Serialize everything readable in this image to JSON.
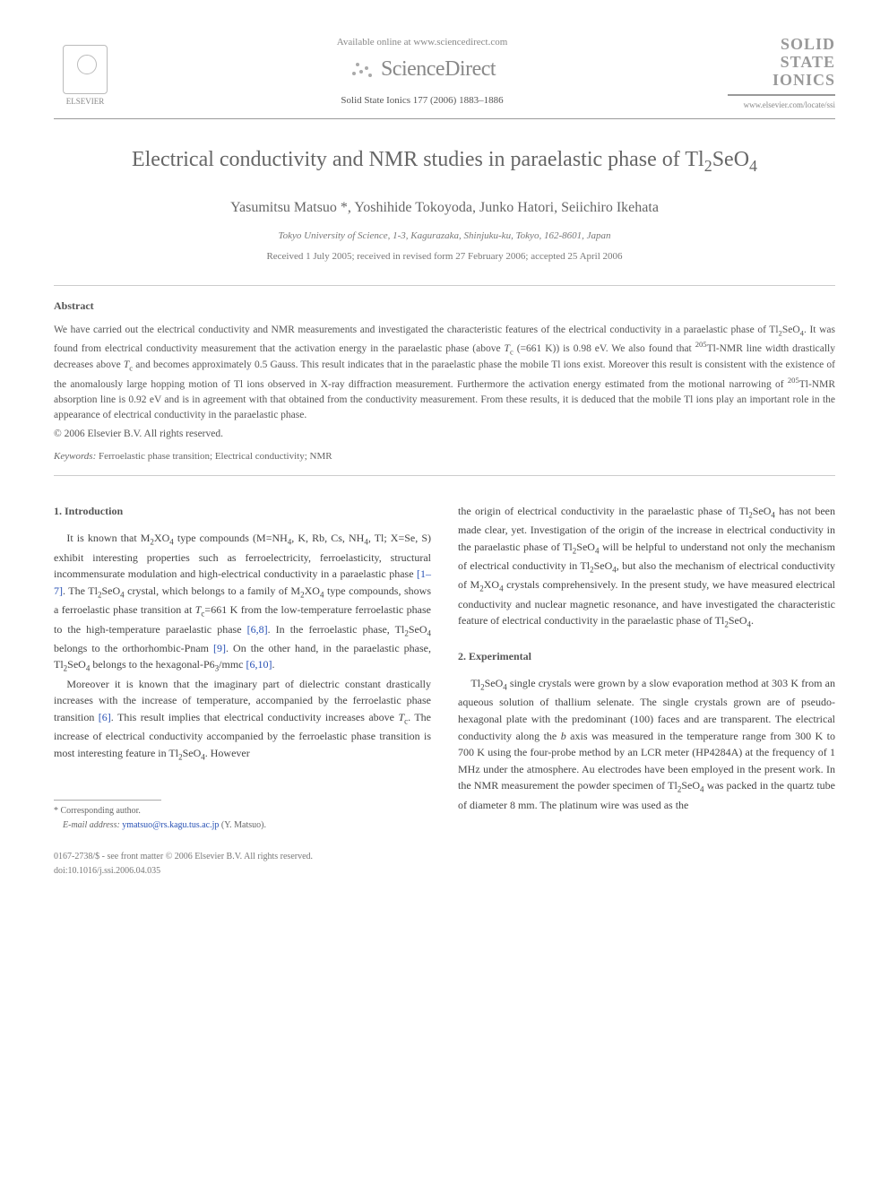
{
  "header": {
    "available_text": "Available online at www.sciencedirect.com",
    "sd_brand": "ScienceDirect",
    "journal_ref": "Solid State Ionics 177 (2006) 1883–1886",
    "elsevier_label": "ELSEVIER",
    "journal_logo_lines": [
      "SOLID",
      "STATE",
      "IONICS"
    ],
    "journal_url": "www.elsevier.com/locate/ssi"
  },
  "article": {
    "title_html": "Electrical conductivity and NMR studies in paraelastic phase of Tl<sub>2</sub>SeO<sub>4</sub>",
    "authors": "Yasumitsu Matsuo *, Yoshihide Tokoyoda, Junko Hatori, Seiichiro Ikehata",
    "affiliation": "Tokyo University of Science, 1-3, Kagurazaka, Shinjuku-ku, Tokyo, 162-8601, Japan",
    "dates": "Received 1 July 2005; received in revised form 27 February 2006; accepted 25 April 2006"
  },
  "abstract": {
    "heading": "Abstract",
    "text_html": "We have carried out the electrical conductivity and NMR measurements and investigated the characteristic features of the electrical conductivity in a paraelastic phase of Tl<sub>2</sub>SeO<sub>4</sub>. It was found from electrical conductivity measurement that the activation energy in the paraelastic phase (above <i>T</i><sub>c</sub> (=661 K)) is 0.98 eV. We also found that <sup>205</sup>Tl-NMR line width drastically decreases above <i>T</i><sub>c</sub> and becomes approximately 0.5 Gauss. This result indicates that in the paraelastic phase the mobile Tl ions exist. Moreover this result is consistent with the existence of the anomalously large hopping motion of Tl ions observed in X-ray diffraction measurement. Furthermore the activation energy estimated from the motional narrowing of <sup>205</sup>Tl-NMR absorption line is 0.92 eV and is in agreement with that obtained from the conductivity measurement. From these results, it is deduced that the mobile Tl ions play an important role in the appearance of electrical conductivity in the paraelastic phase.",
    "copyright": "© 2006 Elsevier B.V. All rights reserved.",
    "keywords_label": "Keywords:",
    "keywords": "Ferroelastic phase transition; Electrical conductivity; NMR"
  },
  "body": {
    "intro_heading": "1. Introduction",
    "intro_p1_html": "It is known that M<sub>2</sub>XO<sub>4</sub> type compounds (M=NH<sub>4</sub>, K, Rb, Cs, NH<sub>4</sub>, Tl; X=Se, S) exhibit interesting properties such as ferroelectricity, ferroelasticity, structural incommensurate modulation and high-electrical conductivity in a paraelastic phase <span class=\"ref-link\">[1–7]</span>. The Tl<sub>2</sub>SeO<sub>4</sub> crystal, which belongs to a family of M<sub>2</sub>XO<sub>4</sub> type compounds, shows a ferroelastic phase transition at <i>T</i><sub>c</sub>=661 K from the low-temperature ferroelastic phase to the high-temperature paraelastic phase <span class=\"ref-link\">[6,8]</span>. In the ferroelastic phase, Tl<sub>2</sub>SeO<sub>4</sub> belongs to the orthorhombic-Pnam <span class=\"ref-link\">[9]</span>. On the other hand, in the paraelastic phase, Tl<sub>2</sub>SeO<sub>4</sub> belongs to the hexagonal-P6<sub>3</sub>/mmc <span class=\"ref-link\">[6,10]</span>.",
    "intro_p2_html": "Moreover it is known that the imaginary part of dielectric constant drastically increases with the increase of temperature, accompanied by the ferroelastic phase transition <span class=\"ref-link\">[6]</span>. This result implies that electrical conductivity increases above <i>T</i><sub>c</sub>. The increase of electrical conductivity accompanied by the ferroelastic phase transition is most interesting feature in Tl<sub>2</sub>SeO<sub>4</sub>. However",
    "col2_p1_html": "the origin of electrical conductivity in the paraelastic phase of Tl<sub>2</sub>SeO<sub>4</sub> has not been made clear, yet. Investigation of the origin of the increase in electrical conductivity in the paraelastic phase of Tl<sub>2</sub>SeO<sub>4</sub> will be helpful to understand not only the mechanism of electrical conductivity in Tl<sub>2</sub>SeO<sub>4</sub>, but also the mechanism of electrical conductivity of M<sub>2</sub>XO<sub>4</sub> crystals comprehensively. In the present study, we have measured electrical conductivity and nuclear magnetic resonance, and have investigated the characteristic feature of electrical conductivity in the paraelastic phase of Tl<sub>2</sub>SeO<sub>4</sub>.",
    "exp_heading": "2. Experimental",
    "exp_p1_html": "Tl<sub>2</sub>SeO<sub>4</sub> single crystals were grown by a slow evaporation method at 303 K from an aqueous solution of thallium selenate. The single crystals grown are of pseudo-hexagonal plate with the predominant (100) faces and are transparent. The electrical conductivity along the <i>b</i> axis was measured in the temperature range from 300 K to 700 K using the four-probe method by an LCR meter (HP4284A) at the frequency of 1 MHz under the atmosphere. Au electrodes have been employed in the present work. In the NMR measurement the powder specimen of Tl<sub>2</sub>SeO<sub>4</sub> was packed in the quartz tube of diameter 8 mm. The platinum wire was used as the"
  },
  "footnote": {
    "corr": "* Corresponding author.",
    "email_label": "E-mail address:",
    "email": "ymatsuo@rs.kagu.tus.ac.jp",
    "email_who": "(Y. Matsuo)."
  },
  "footer": {
    "issn": "0167-2738/$ - see front matter © 2006 Elsevier B.V. All rights reserved.",
    "doi": "doi:10.1016/j.ssi.2006.04.035"
  },
  "colors": {
    "text": "#444444",
    "heading": "#555555",
    "muted": "#888888",
    "link": "#2952b5",
    "rule": "#999999"
  }
}
